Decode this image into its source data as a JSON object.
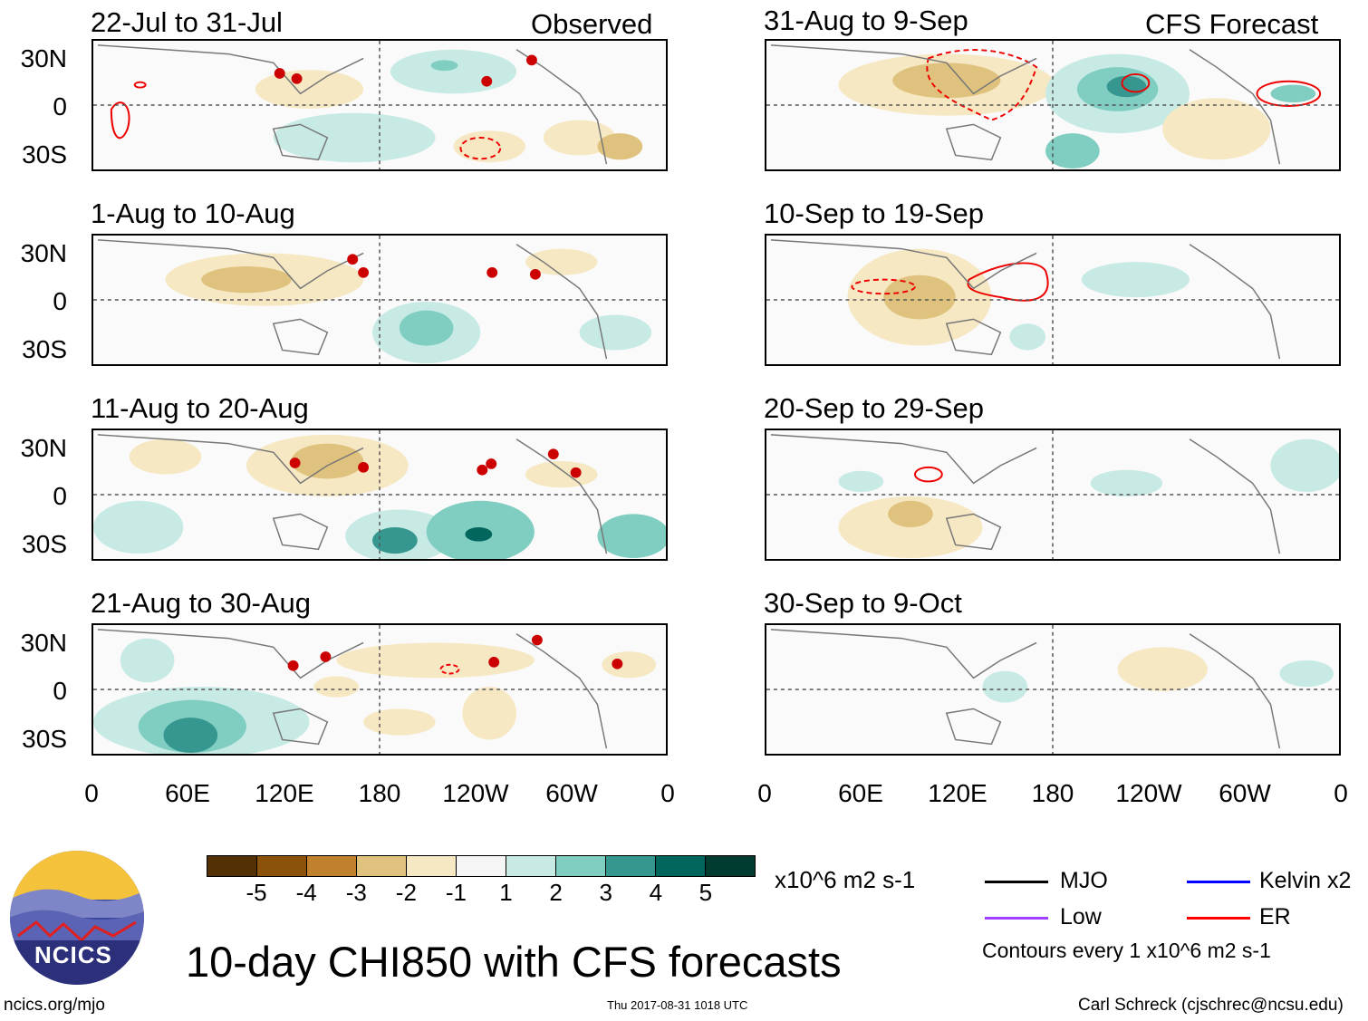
{
  "observed_label": "Observed",
  "forecast_label": "CFS Forecast",
  "left_panels": [
    {
      "title": "22-Jul to 31-Jul"
    },
    {
      "title": "1-Aug to 10-Aug"
    },
    {
      "title": "11-Aug to 20-Aug"
    },
    {
      "title": "21-Aug to 30-Aug"
    }
  ],
  "right_panels": [
    {
      "title": "31-Aug to 9-Sep"
    },
    {
      "title": "10-Sep to 19-Sep"
    },
    {
      "title": "20-Sep to 29-Sep"
    },
    {
      "title": "30-Sep to 9-Oct"
    }
  ],
  "lat_labels": [
    "30N",
    "0",
    "30S"
  ],
  "lon_labels": [
    "0",
    "60E",
    "120E",
    "180",
    "120W",
    "60W",
    "0"
  ],
  "colorbar": {
    "colors": [
      "#543005",
      "#8c510a",
      "#bf812d",
      "#dfc27d",
      "#f6e8c3",
      "#f5f5f5",
      "#c7eae5",
      "#80cdc1",
      "#35978f",
      "#01665e",
      "#003c30"
    ],
    "tick_labels": [
      "-5",
      "-4",
      "-3",
      "-2",
      "-1",
      "1",
      "2",
      "3",
      "4",
      "5"
    ],
    "units": "x10^6 m2 s-1"
  },
  "legend": {
    "items": [
      {
        "label": "MJO",
        "color": "#000000"
      },
      {
        "label": "Kelvin x2",
        "color": "#0000ff"
      },
      {
        "label": "Low",
        "color": "#a040ff"
      },
      {
        "label": "ER",
        "color": "#ff0000"
      }
    ],
    "note": "Contours every 1 x10^6 m2 s-1"
  },
  "logo_text": "NCICS",
  "main_title": "10-day CHI850 with CFS forecasts",
  "footer": {
    "left": "ncics.org/mjo",
    "center": "Thu 2017-08-31 1018 UTC",
    "right": "Carl Schreck (cjschrec@ncsu.edu)"
  }
}
